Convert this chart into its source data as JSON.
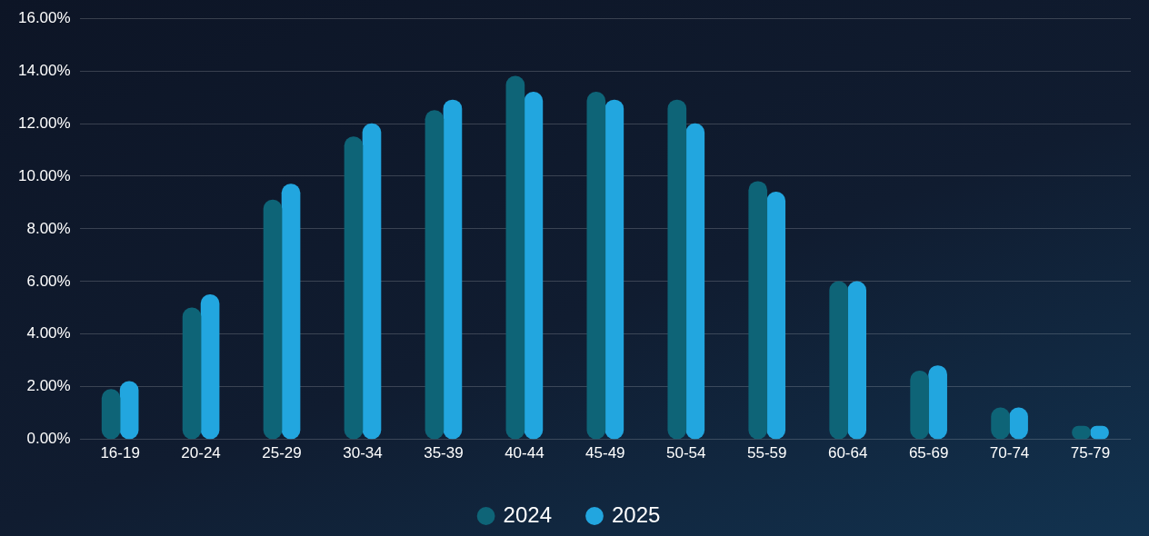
{
  "chart_data": {
    "type": "bar",
    "categories": [
      "16-19",
      "20-24",
      "25-29",
      "30-34",
      "35-39",
      "40-44",
      "45-49",
      "50-54",
      "55-59",
      "60-64",
      "65-69",
      "70-74",
      "75-79"
    ],
    "series": [
      {
        "name": "2024",
        "color": "#0e6477",
        "values": [
          1.9,
          5.0,
          9.1,
          11.5,
          12.5,
          13.8,
          13.2,
          12.9,
          9.8,
          6.0,
          2.6,
          1.2,
          0.5
        ]
      },
      {
        "name": "2025",
        "color": "#22a6df",
        "values": [
          2.2,
          5.5,
          9.7,
          12.0,
          12.9,
          13.2,
          12.9,
          12.0,
          9.4,
          6.0,
          2.8,
          1.2,
          0.5
        ]
      }
    ],
    "ylim": [
      0,
      16
    ],
    "yticks": [
      {
        "value": 0,
        "label": "0.00%"
      },
      {
        "value": 2,
        "label": "2.00%"
      },
      {
        "value": 4,
        "label": "4.00%"
      },
      {
        "value": 6,
        "label": "6.00%"
      },
      {
        "value": 8,
        "label": "8.00%"
      },
      {
        "value": 10,
        "label": "10.00%"
      },
      {
        "value": 12,
        "label": "12.00%"
      },
      {
        "value": 14,
        "label": "14.00%"
      },
      {
        "value": 16,
        "label": "16.00%"
      }
    ],
    "grid": "y",
    "legend": "bottom",
    "marker": "circle"
  }
}
